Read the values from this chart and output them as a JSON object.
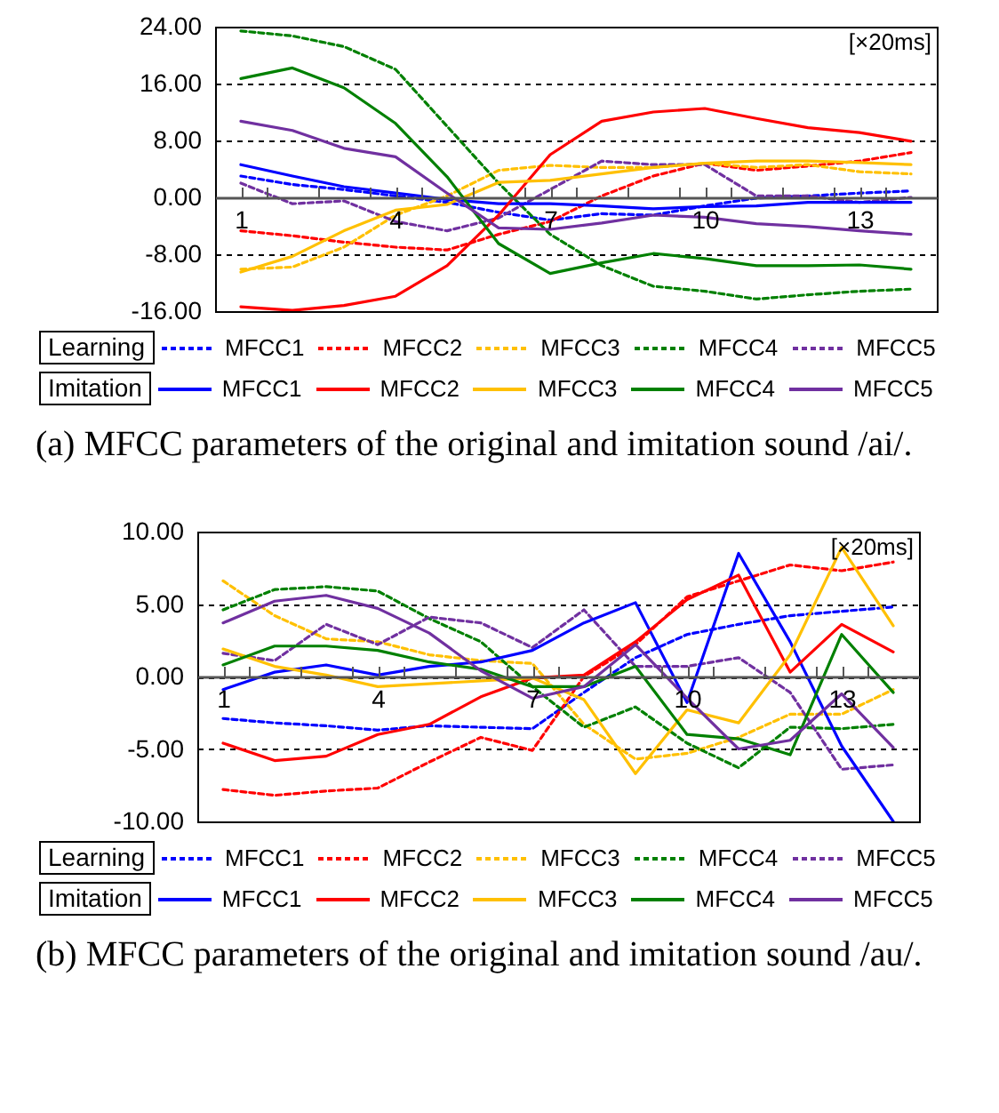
{
  "chart_data": [
    {
      "type": "line",
      "annotations": [
        "[×20ms]",
        "Learning",
        "Imitation",
        "(a)  MFCC parameters of the original and imitation sound /ai/."
      ],
      "x": [
        1,
        2,
        3,
        4,
        5,
        6,
        7,
        8,
        9,
        10,
        11,
        12,
        13,
        14
      ],
      "xlim": [
        0.5,
        14.5
      ],
      "xticks": [
        1,
        {
          "value": 1.5,
          "label": null
        },
        {
          "value": 2.5,
          "label": null
        },
        {
          "value": 3.5,
          "label": null
        },
        4,
        {
          "value": 4.5,
          "label": null
        },
        {
          "value": 5.5,
          "label": null
        },
        {
          "value": 6.5,
          "label": null
        },
        7,
        {
          "value": 7.5,
          "label": null
        },
        {
          "value": 8.5,
          "label": null
        },
        {
          "value": 9.5,
          "label": null
        },
        10,
        {
          "value": 10.5,
          "label": null
        },
        {
          "value": 11.5,
          "label": null
        },
        {
          "value": 12.5,
          "label": null
        },
        13,
        {
          "value": 13.5,
          "label": null
        }
      ],
      "ylim": [
        -16,
        24
      ],
      "yticks": [
        {
          "value": -16,
          "label": "-16.00"
        },
        {
          "value": -8,
          "label": "-8.00"
        },
        {
          "value": 0,
          "label": "0.00"
        },
        {
          "value": 8,
          "label": "8.00"
        },
        {
          "value": 16,
          "label": "16.00"
        },
        {
          "value": 24,
          "label": "24.00"
        }
      ],
      "grid": "y",
      "legend": "bottom",
      "marker": "none",
      "series": [
        {
          "name": "MFCC1",
          "color": "#0000ff",
          "line_style": "dashed",
          "values": [
            3.0,
            1.8,
            1.1,
            0.2,
            -0.7,
            -2.1,
            -3.2,
            -2.3,
            -2.5,
            -1.2,
            -0.1,
            0.2,
            0.6,
            0.9
          ]
        },
        {
          "name": "MFCC2",
          "color": "#ff0000",
          "line_style": "dashed",
          "values": [
            -4.7,
            -5.4,
            -6.3,
            -7.0,
            -7.4,
            -5.2,
            -3.4,
            0.2,
            3.0,
            4.8,
            3.8,
            4.4,
            5.1,
            6.3
          ]
        },
        {
          "name": "MFCC3",
          "color": "#ffc000",
          "line_style": "dashed",
          "values": [
            -10.1,
            -9.8,
            -7.0,
            -2.5,
            0.2,
            3.8,
            4.5,
            4.2,
            4.2,
            4.8,
            4.2,
            4.6,
            3.6,
            3.3
          ]
        },
        {
          "name": "MFCC4",
          "color": "#008000",
          "line_style": "dashed",
          "values": [
            23.4,
            22.7,
            21.2,
            18.0,
            10.0,
            2.0,
            -5.2,
            -9.6,
            -12.5,
            -13.2,
            -14.3,
            -13.7,
            -13.2,
            -12.9
          ]
        },
        {
          "name": "MFCC5",
          "color": "#7030a0",
          "line_style": "dashed",
          "values": [
            2.0,
            -0.9,
            -0.5,
            -3.4,
            -4.7,
            -2.9,
            1.1,
            5.1,
            4.6,
            4.6,
            0.2,
            0.2,
            -0.7,
            0.0
          ]
        },
        {
          "name": "MFCC1",
          "color": "#0000ff",
          "line_style": "solid",
          "values": [
            4.6,
            3.0,
            1.5,
            0.6,
            -0.3,
            -0.9,
            -0.9,
            -1.2,
            -1.6,
            -1.3,
            -1.2,
            -0.7,
            -0.7,
            -0.7
          ]
        },
        {
          "name": "MFCC2",
          "color": "#ff0000",
          "line_style": "solid",
          "values": [
            -15.4,
            -15.9,
            -15.2,
            -13.9,
            -9.6,
            -2.5,
            6.0,
            10.7,
            12.0,
            12.5,
            11.1,
            9.8,
            9.1,
            7.9
          ]
        },
        {
          "name": "MFCC3",
          "color": "#ffc000",
          "line_style": "solid",
          "values": [
            -10.5,
            -8.3,
            -4.7,
            -1.8,
            -1.0,
            2.1,
            2.4,
            3.3,
            4.2,
            4.8,
            5.1,
            5.1,
            4.9,
            4.6
          ]
        },
        {
          "name": "MFCC4",
          "color": "#008000",
          "line_style": "solid",
          "values": [
            16.7,
            18.2,
            15.4,
            10.4,
            2.9,
            -6.5,
            -10.7,
            -9.2,
            -7.9,
            -8.6,
            -9.6,
            -9.6,
            -9.5,
            -10.1
          ]
        },
        {
          "name": "MFCC5",
          "color": "#7030a0",
          "line_style": "solid",
          "values": [
            10.7,
            9.4,
            6.9,
            5.7,
            0.6,
            -4.3,
            -4.5,
            -3.6,
            -2.5,
            -2.8,
            -3.7,
            -4.1,
            -4.7,
            -5.2
          ]
        }
      ]
    },
    {
      "type": "line",
      "annotations": [
        "[×20ms]",
        "Learning",
        "Imitation",
        "(b)  MFCC parameters of the original and imitation sound /au/."
      ],
      "x": [
        1,
        2,
        3,
        4,
        5,
        6,
        7,
        8,
        9,
        10,
        11,
        12,
        13,
        14
      ],
      "xlim": [
        0.5,
        14.5
      ],
      "xticks": [
        1,
        {
          "value": 1.5,
          "label": null
        },
        {
          "value": 2.5,
          "label": null
        },
        {
          "value": 3.5,
          "label": null
        },
        4,
        {
          "value": 4.5,
          "label": null
        },
        {
          "value": 5.5,
          "label": null
        },
        {
          "value": 6.5,
          "label": null
        },
        7,
        {
          "value": 7.5,
          "label": null
        },
        {
          "value": 8.5,
          "label": null
        },
        {
          "value": 9.5,
          "label": null
        },
        10,
        {
          "value": 10.5,
          "label": null
        },
        {
          "value": 11.5,
          "label": null
        },
        {
          "value": 12.5,
          "label": null
        },
        13,
        {
          "value": 13.5,
          "label": null
        }
      ],
      "ylim": [
        -10,
        10
      ],
      "yticks": [
        {
          "value": -10,
          "label": "-10.00"
        },
        {
          "value": -5,
          "label": "-5.00"
        },
        {
          "value": 0,
          "label": "0.00"
        },
        {
          "value": 5,
          "label": "5.00"
        },
        {
          "value": 10,
          "label": "10.00"
        }
      ],
      "grid": "y",
      "legend": "bottom",
      "marker": "none",
      "series": [
        {
          "name": "MFCC1",
          "color": "#0000ff",
          "line_style": "dashed",
          "values": [
            -2.9,
            -3.2,
            -3.4,
            -3.7,
            -3.4,
            -3.5,
            -3.6,
            -1.1,
            1.3,
            2.9,
            3.6,
            4.2,
            4.5,
            4.8
          ]
        },
        {
          "name": "MFCC2",
          "color": "#ff0000",
          "line_style": "dashed",
          "values": [
            -7.8,
            -8.2,
            -7.9,
            -7.7,
            -5.9,
            -4.2,
            -5.1,
            0.0,
            2.2,
            5.5,
            6.6,
            7.7,
            7.3,
            7.9
          ]
        },
        {
          "name": "MFCC3",
          "color": "#ffc000",
          "line_style": "dashed",
          "values": [
            6.6,
            4.2,
            2.6,
            2.4,
            1.5,
            1.1,
            0.9,
            -3.3,
            -5.7,
            -5.3,
            -4.2,
            -2.6,
            -2.6,
            -0.9
          ]
        },
        {
          "name": "MFCC4",
          "color": "#008000",
          "line_style": "dashed",
          "values": [
            4.6,
            6.0,
            6.2,
            5.9,
            4.0,
            2.4,
            -0.7,
            -3.5,
            -2.1,
            -4.6,
            -6.3,
            -3.5,
            -3.6,
            -3.3
          ]
        },
        {
          "name": "MFCC5",
          "color": "#7030a0",
          "line_style": "dashed",
          "values": [
            1.6,
            1.1,
            3.6,
            2.2,
            4.1,
            3.7,
            2.0,
            4.6,
            0.7,
            0.7,
            1.3,
            -1.1,
            -6.4,
            -6.1
          ]
        },
        {
          "name": "MFCC1",
          "color": "#0000ff",
          "line_style": "solid",
          "values": [
            -0.9,
            0.3,
            0.8,
            0.1,
            0.7,
            1.0,
            1.8,
            3.7,
            5.1,
            -1.8,
            8.5,
            2.4,
            -4.8,
            -10.0
          ]
        },
        {
          "name": "MFCC2",
          "color": "#ff0000",
          "line_style": "solid",
          "values": [
            -4.6,
            -5.8,
            -5.5,
            -4.0,
            -3.3,
            -1.4,
            -0.1,
            0.1,
            2.4,
            5.3,
            7.0,
            0.3,
            3.6,
            1.7
          ]
        },
        {
          "name": "MFCC3",
          "color": "#ffc000",
          "line_style": "solid",
          "values": [
            1.9,
            0.7,
            0.1,
            -0.7,
            -0.5,
            -0.3,
            -0.1,
            -1.6,
            -6.7,
            -2.3,
            -3.2,
            1.5,
            8.9,
            3.5
          ]
        },
        {
          "name": "MFCC4",
          "color": "#008000",
          "line_style": "solid",
          "values": [
            0.8,
            2.1,
            2.1,
            1.8,
            1.0,
            0.5,
            -0.7,
            -0.7,
            0.7,
            -4.0,
            -4.3,
            -5.4,
            2.9,
            -1.1
          ]
        },
        {
          "name": "MFCC5",
          "color": "#7030a0",
          "line_style": "solid",
          "values": [
            3.7,
            5.2,
            5.6,
            4.7,
            3.0,
            0.4,
            -1.5,
            -0.7,
            2.2,
            -1.5,
            -5.0,
            -4.4,
            -1.2,
            -4.9
          ]
        }
      ]
    }
  ]
}
